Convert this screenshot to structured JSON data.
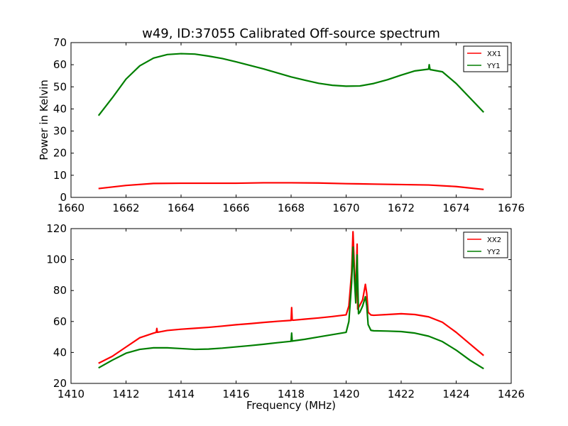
{
  "title": "w49, ID:37055 Calibrated Off-source spectrum",
  "chart_data": [
    {
      "type": "line",
      "title": "w49, ID:37055 Calibrated Off-source spectrum",
      "xlabel": "",
      "ylabel": "Power in Kelvin",
      "xlim": [
        1660,
        1676
      ],
      "ylim": [
        0,
        70
      ],
      "xticks": [
        "1660",
        "1662",
        "1664",
        "1666",
        "1668",
        "1670",
        "1672",
        "1674",
        "1676"
      ],
      "yticks": [
        "0",
        "10",
        "20",
        "30",
        "40",
        "50",
        "60",
        "70"
      ],
      "legend_position": "top-right",
      "series": [
        {
          "name": "XX1",
          "color": "#ff0000",
          "x": [
            1661.0,
            1662.0,
            1663.0,
            1664.0,
            1665.0,
            1666.0,
            1667.0,
            1668.0,
            1669.0,
            1670.0,
            1671.0,
            1672.0,
            1673.0,
            1674.0,
            1675.0
          ],
          "y": [
            4.0,
            5.4,
            6.3,
            6.4,
            6.4,
            6.4,
            6.6,
            6.6,
            6.5,
            6.2,
            6.0,
            5.8,
            5.6,
            4.9,
            3.6
          ]
        },
        {
          "name": "YY1",
          "color": "#007f00",
          "x": [
            1661.0,
            1661.5,
            1662.0,
            1662.5,
            1663.0,
            1663.5,
            1664.0,
            1664.5,
            1665.0,
            1665.5,
            1666.0,
            1666.5,
            1667.0,
            1667.5,
            1668.0,
            1668.5,
            1669.0,
            1669.5,
            1670.0,
            1670.5,
            1671.0,
            1671.5,
            1672.0,
            1672.5,
            1673.0,
            1673.02,
            1673.05,
            1673.5,
            1674.0,
            1674.5,
            1675.0
          ],
          "y": [
            37.0,
            45.0,
            53.5,
            59.5,
            63.0,
            64.6,
            65.0,
            64.8,
            63.9,
            62.8,
            61.3,
            59.7,
            58.1,
            56.3,
            54.5,
            53.0,
            51.6,
            50.7,
            50.3,
            50.4,
            51.5,
            53.2,
            55.3,
            57.2,
            58.0,
            60.0,
            57.8,
            56.8,
            51.5,
            45.0,
            38.5
          ]
        }
      ]
    },
    {
      "type": "line",
      "title": "",
      "xlabel": "Frequency (MHz)",
      "ylabel": "",
      "xlim": [
        1410,
        1426
      ],
      "ylim": [
        20,
        120
      ],
      "xticks": [
        "1410",
        "1412",
        "1414",
        "1416",
        "1418",
        "1420",
        "1422",
        "1424",
        "1426"
      ],
      "yticks": [
        "20",
        "40",
        "60",
        "80",
        "100",
        "120"
      ],
      "legend_position": "top-right",
      "series": [
        {
          "name": "XX2",
          "color": "#ff0000",
          "x": [
            1411.0,
            1411.5,
            1412.0,
            1412.5,
            1413.0,
            1413.1,
            1413.12,
            1413.14,
            1413.5,
            1414.0,
            1414.5,
            1415.0,
            1415.5,
            1416.0,
            1416.5,
            1417.0,
            1417.5,
            1418.0,
            1418.02,
            1418.04,
            1418.06,
            1418.5,
            1419.0,
            1419.5,
            1420.0,
            1420.1,
            1420.2,
            1420.25,
            1420.3,
            1420.35,
            1420.4,
            1420.42,
            1420.45,
            1420.5,
            1420.6,
            1420.7,
            1420.75,
            1420.8,
            1420.9,
            1421.0,
            1421.5,
            1422.0,
            1422.5,
            1423.0,
            1423.5,
            1424.0,
            1424.5,
            1425.0
          ],
          "y": [
            33.0,
            37.5,
            43.5,
            49.5,
            52.5,
            53.0,
            55.5,
            53.0,
            54.2,
            55.0,
            55.6,
            56.2,
            57.0,
            57.9,
            58.6,
            59.4,
            60.1,
            60.7,
            69.0,
            61.0,
            60.8,
            61.5,
            62.3,
            63.2,
            64.3,
            70.0,
            92.0,
            118.0,
            95.0,
            76.0,
            110.0,
            68.0,
            69.0,
            70.5,
            74.0,
            84.0,
            78.0,
            66.0,
            64.2,
            64.0,
            64.5,
            65.0,
            64.5,
            63.0,
            59.5,
            53.0,
            45.5,
            38.0
          ]
        },
        {
          "name": "YY2",
          "color": "#007f00",
          "x": [
            1411.0,
            1411.5,
            1412.0,
            1412.5,
            1413.0,
            1413.5,
            1414.0,
            1414.5,
            1415.0,
            1415.5,
            1416.0,
            1416.5,
            1417.0,
            1417.5,
            1418.0,
            1418.02,
            1418.04,
            1418.06,
            1418.5,
            1419.0,
            1419.5,
            1420.0,
            1420.1,
            1420.2,
            1420.25,
            1420.3,
            1420.35,
            1420.4,
            1420.45,
            1420.5,
            1420.6,
            1420.7,
            1420.75,
            1420.8,
            1420.9,
            1421.0,
            1421.5,
            1422.0,
            1422.5,
            1423.0,
            1423.5,
            1424.0,
            1424.5,
            1425.0
          ],
          "y": [
            30.0,
            35.0,
            39.5,
            42.0,
            43.0,
            43.0,
            42.5,
            42.0,
            42.2,
            42.8,
            43.6,
            44.4,
            45.3,
            46.3,
            47.2,
            52.5,
            47.3,
            47.4,
            48.5,
            50.0,
            51.5,
            53.0,
            60.0,
            85.0,
            108.0,
            88.0,
            72.0,
            103.0,
            65.0,
            66.0,
            70.0,
            76.0,
            70.0,
            58.0,
            54.3,
            54.0,
            53.8,
            53.5,
            52.5,
            50.5,
            47.0,
            41.5,
            35.0,
            29.5
          ]
        }
      ]
    }
  ]
}
